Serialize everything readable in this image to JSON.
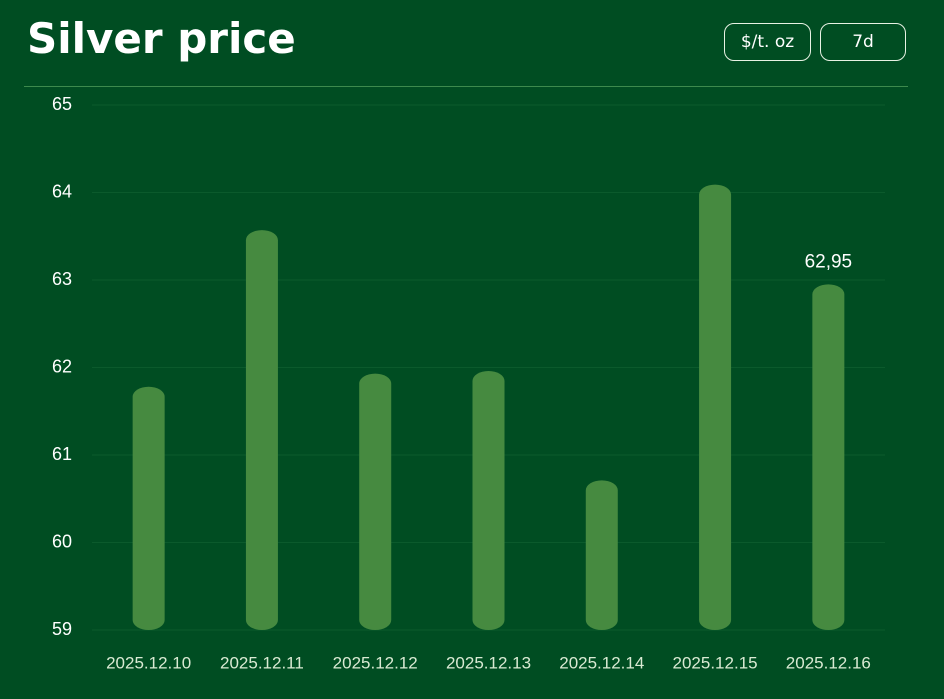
{
  "header": {
    "title": "Silver price",
    "buttons": [
      "$/t. oz",
      "7d"
    ]
  },
  "chart_data": {
    "type": "bar",
    "categories": [
      "2025.12.10",
      "2025.12.11",
      "2025.12.12",
      "2025.12.13",
      "2025.12.14",
      "2025.12.15",
      "2025.12.16"
    ],
    "values": [
      61.78,
      63.57,
      61.93,
      61.96,
      60.71,
      64.09,
      62.95
    ],
    "value_labels": [
      null,
      null,
      null,
      null,
      null,
      null,
      "62,95"
    ],
    "color": "#468a40",
    "ylim": [
      59,
      65
    ],
    "yticks": [
      59,
      60,
      61,
      62,
      63,
      64,
      65
    ],
    "grid": true
  }
}
